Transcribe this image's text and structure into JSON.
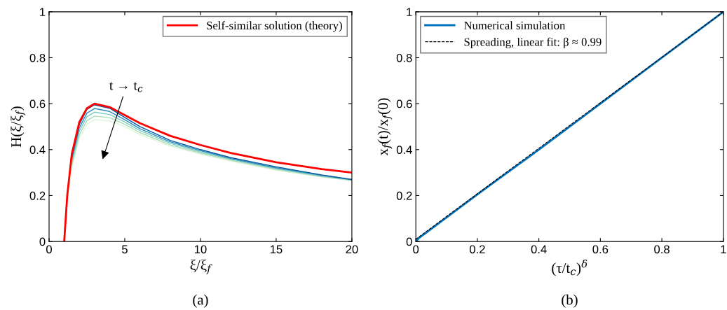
{
  "chart_data": [
    {
      "type": "line",
      "title": "(a)",
      "xlabel": "ξ/ξ$_{f}$",
      "ylabel": "H(ξ/ξ$_{f}$)",
      "xlim": [
        0,
        20
      ],
      "ylim": [
        0,
        1
      ],
      "xticks": [
        0,
        5,
        10,
        15,
        20
      ],
      "yticks": [
        0,
        0.2,
        0.4,
        0.6,
        0.8,
        1
      ],
      "grid": false,
      "legend": "top right",
      "marker": "none",
      "line_style": "solid",
      "x": [
        0,
        1,
        1.2,
        1.5,
        2,
        2.5,
        3,
        4,
        5,
        6,
        8,
        10,
        12,
        15,
        18,
        20
      ],
      "series": [
        {
          "color": "#e0f3db",
          "values": [
            0,
            0,
            0.17,
            0.32,
            0.45,
            0.51,
            0.53,
            0.525,
            0.5,
            0.465,
            0.415,
            0.38,
            0.35,
            0.31,
            0.28,
            0.265
          ]
        },
        {
          "color": "#a8ddb5",
          "values": [
            null,
            null,
            null,
            0.333,
            0.465,
            0.526,
            0.546,
            0.539,
            0.51,
            0.474,
            0.421,
            0.385,
            0.354,
            0.314,
            0.283,
            0.266
          ]
        },
        {
          "color": "#7bccc4",
          "values": [
            null,
            null,
            null,
            0.345,
            0.48,
            0.543,
            0.563,
            0.553,
            0.52,
            0.483,
            0.428,
            0.39,
            0.358,
            0.318,
            0.285,
            0.268
          ]
        },
        {
          "color": "#2b8cbe",
          "values": [
            null,
            null,
            null,
            0.358,
            0.495,
            0.559,
            0.579,
            0.566,
            0.53,
            0.491,
            0.434,
            0.395,
            0.361,
            0.321,
            0.288,
            0.269
          ]
        },
        {
          "color": "#08589e",
          "values": [
            null,
            null,
            null,
            0.37,
            0.51,
            0.575,
            0.595,
            0.58,
            0.54,
            0.5,
            0.44,
            0.4,
            0.365,
            0.325,
            0.29,
            0.27
          ]
        },
        {
          "name": "Self-similar solution (theory)",
          "color": "#ff0000",
          "x": [
            1,
            1.2,
            1.5,
            2,
            2.5,
            3,
            4,
            5,
            6,
            8,
            10,
            12,
            15,
            18,
            20
          ],
          "values": [
            0,
            0.2,
            0.38,
            0.52,
            0.58,
            0.6,
            0.585,
            0.55,
            0.515,
            0.46,
            0.42,
            0.385,
            0.345,
            0.315,
            0.3
          ]
        }
      ],
      "annotations": [
        "t → t$_{c}$"
      ]
    },
    {
      "type": "line",
      "title": "(b)",
      "xlabel": "(τ/t$_{c}$)$^{δ}$",
      "ylabel": "x$_{f}$(t)/x$_{f}$(0)",
      "xlim": [
        0,
        1
      ],
      "ylim": [
        0,
        1
      ],
      "xticks": [
        0,
        0.2,
        0.4,
        0.6,
        0.8,
        1
      ],
      "yticks": [
        0,
        0.2,
        0.4,
        0.6,
        0.8,
        1
      ],
      "grid": false,
      "legend": "top left",
      "marker": "none",
      "series": [
        {
          "name": "Numerical simulation",
          "color": "#0072bd",
          "line_style": "solid",
          "x": [
            0,
            0.01,
            0.05,
            0.2,
            0.4,
            0.6,
            0.8,
            1
          ],
          "values": [
            0,
            0.015,
            0.055,
            0.205,
            0.4,
            0.6,
            0.8,
            1
          ]
        },
        {
          "name": "Spreading, linear fit: β ≈ 0.99",
          "color": "#000000",
          "line_style": "dashed",
          "x": [
            0,
            1
          ],
          "values": [
            0.01,
            1
          ]
        }
      ]
    }
  ]
}
